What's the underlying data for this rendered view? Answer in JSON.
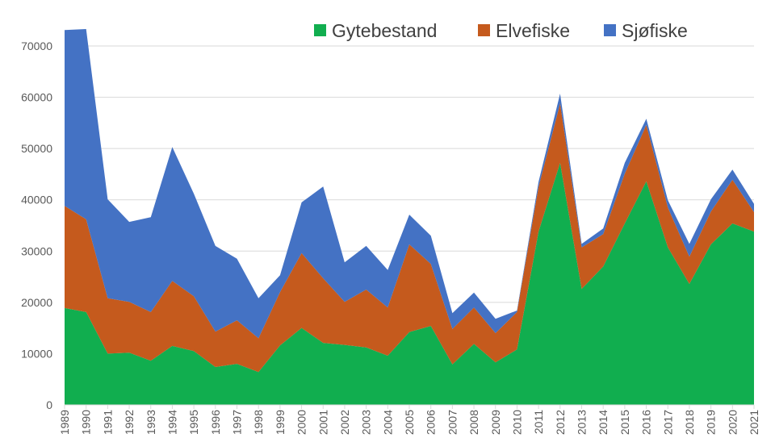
{
  "chart_data": {
    "type": "area",
    "stacked": true,
    "title": "",
    "xlabel": "",
    "ylabel": "",
    "ylim": [
      0,
      70000
    ],
    "yticks": [
      0,
      10000,
      20000,
      30000,
      40000,
      50000,
      60000,
      70000
    ],
    "grid": true,
    "legend_position": "top-right",
    "x": [
      "1989",
      "1990",
      "1991",
      "1992",
      "1993",
      "1994",
      "1995",
      "1996",
      "1997",
      "1998",
      "1999",
      "2000",
      "2001",
      "2002",
      "2003",
      "2004",
      "2005",
      "2006",
      "2007",
      "2008",
      "2009",
      "2010",
      "2011",
      "2012",
      "2013",
      "2014",
      "2015",
      "2016",
      "2017",
      "2018",
      "2019",
      "2020",
      "2021"
    ],
    "series": [
      {
        "name": "Gytebestand",
        "color": "#11AE4F",
        "values": [
          18900,
          18100,
          10000,
          10200,
          8600,
          11500,
          10500,
          7400,
          8000,
          6400,
          11600,
          15000,
          12100,
          11700,
          11200,
          9600,
          14200,
          15400,
          7900,
          11900,
          8300,
          10800,
          33800,
          47200,
          22600,
          27000,
          35400,
          43600,
          30700,
          23600,
          31300,
          35400,
          33800
        ]
      },
      {
        "name": "Elvefiske",
        "color": "#C55A1D",
        "values": [
          19900,
          18100,
          10800,
          9900,
          9500,
          12700,
          10700,
          6900,
          8500,
          6600,
          10400,
          14600,
          12600,
          8400,
          11300,
          9400,
          17100,
          12100,
          6900,
          7100,
          5700,
          7300,
          8700,
          11600,
          8100,
          6300,
          9700,
          11000,
          7800,
          5300,
          6400,
          8500,
          3800
        ]
      },
      {
        "name": "Sjøfiske",
        "color": "#4472C4",
        "values": [
          34300,
          37100,
          19300,
          15600,
          18500,
          26100,
          20000,
          16700,
          12000,
          7800,
          3300,
          9900,
          17900,
          7700,
          8500,
          7300,
          5800,
          5500,
          3100,
          2900,
          2800,
          300,
          1000,
          1900,
          700,
          1100,
          2100,
          1200,
          1400,
          2500,
          2400,
          2000,
          1600
        ]
      }
    ]
  }
}
